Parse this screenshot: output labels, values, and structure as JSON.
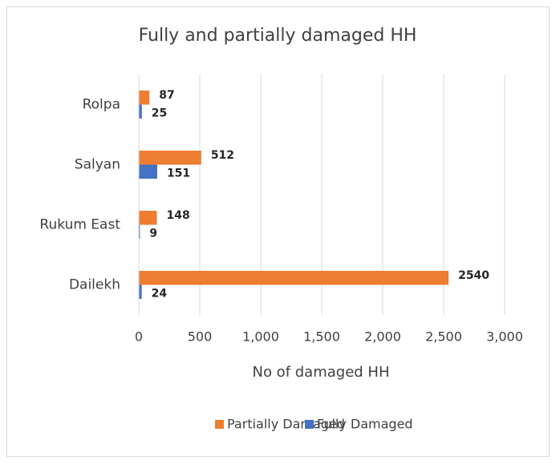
{
  "chart_data": {
    "type": "barh",
    "title": "Fully and partially damaged HH",
    "categories": [
      "Rolpa",
      "Salyan",
      "Rukum East",
      "Dailekh"
    ],
    "series": [
      {
        "name": "Partially Damaged",
        "color": "#ed7d31",
        "values": [
          87,
          512,
          148,
          2540
        ]
      },
      {
        "name": "Fully Damaged",
        "color": "#4472c4",
        "values": [
          25,
          151,
          9,
          24
        ]
      }
    ],
    "x_label": "No of damaged HH",
    "xlim": [
      0,
      3000
    ],
    "xticks": [
      0,
      500,
      {
        "value": 1000,
        "label": "1,000"
      },
      {
        "value": 1500,
        "label": "1,500"
      },
      {
        "value": 2000,
        "label": "2,000"
      },
      {
        "value": 2500,
        "label": "2,500"
      },
      {
        "value": 3000,
        "label": "3,000"
      }
    ],
    "grid": true,
    "legend": "bottom"
  }
}
